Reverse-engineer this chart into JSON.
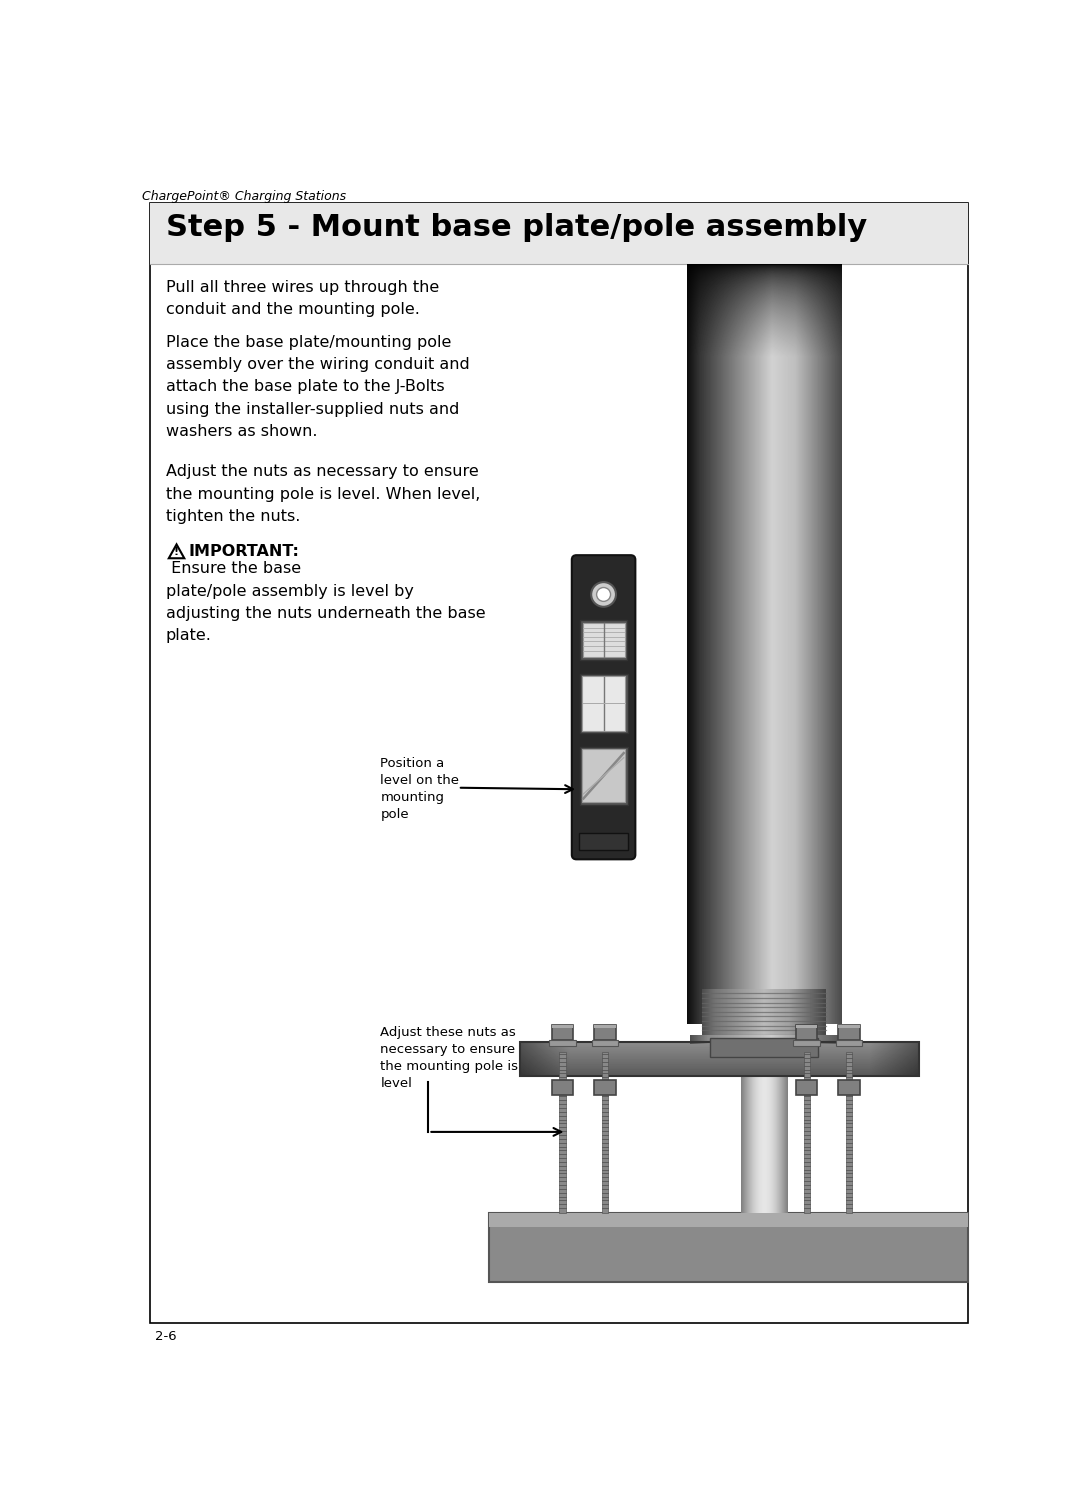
{
  "page_title_small": "ChargePoint® Charging Stations",
  "page_number": "2-6",
  "step_title": "Step 5 - Mount base plate/pole assembly",
  "para1": "Pull all three wires up through the\nconduit and the mounting pole.",
  "para2": "Place the base plate/mounting pole\nassembly over the wiring conduit and\nattach the base plate to the J-Bolts\nusing the installer-supplied nuts and\nwashers as shown.",
  "para3": "Adjust the nuts as necessary to ensure\nthe mounting pole is level. When level,\ntighten the nuts.",
  "important_label": "IMPORTANT:",
  "important_text": " Ensure the base\nplate/pole assembly is level by\nadjusting the nuts underneath the base\nplate.",
  "callout1_text": "Position a\nlevel on the\nmounting\npole",
  "callout2_text": "Adjust these nuts as\nnecessary to ensure\nthe mounting pole is\nlevel",
  "bg_color": "#ffffff",
  "border_color": "#000000",
  "text_color": "#000000",
  "title_fontsize": 22,
  "body_fontsize": 11.5,
  "small_fontsize": 9.5,
  "header_fontsize": 9
}
